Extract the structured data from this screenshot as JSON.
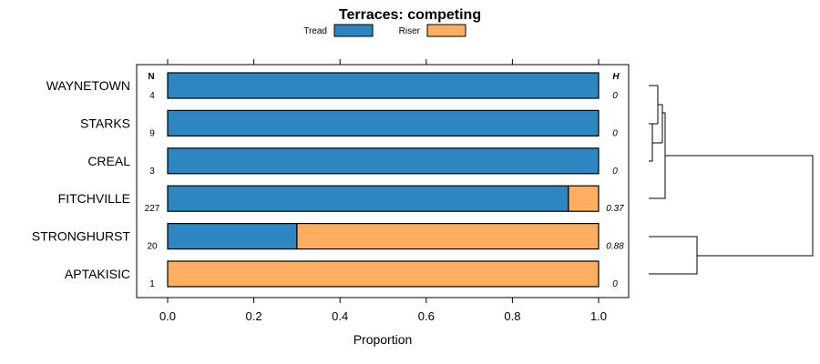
{
  "chart_data": {
    "type": "bar",
    "orientation": "horizontal",
    "stacked": true,
    "title": "Terraces: competing",
    "xlabel": "Proportion",
    "xlim": [
      -0.05,
      1.07
    ],
    "xticks": [
      "0.0",
      "0.2",
      "0.4",
      "0.6",
      "0.8",
      "1.0"
    ],
    "xtick_values": [
      0,
      0.2,
      0.4,
      0.6,
      0.8,
      1.0
    ],
    "n_header": "N",
    "h_header": "H",
    "categories": [
      "WAYNETOWN",
      "STARKS",
      "CREAL",
      "FITCHVILLE",
      "STRONGHURST",
      "APTAKISIC"
    ],
    "n": [
      "4",
      "9",
      "3",
      "227",
      "20",
      "1"
    ],
    "h": [
      "0",
      "0",
      "0",
      "0.37",
      "0.88",
      "0"
    ],
    "series": [
      {
        "name": "Tread",
        "color": "#2e86c1",
        "values": [
          1.0,
          1.0,
          1.0,
          0.93,
          0.3,
          0.0
        ]
      },
      {
        "name": "Riser",
        "color": "#fdae61",
        "values": [
          0.0,
          0.0,
          0.0,
          0.07,
          0.7,
          1.0
        ]
      }
    ],
    "legend_position": "top-center",
    "dendrogram": "right"
  }
}
